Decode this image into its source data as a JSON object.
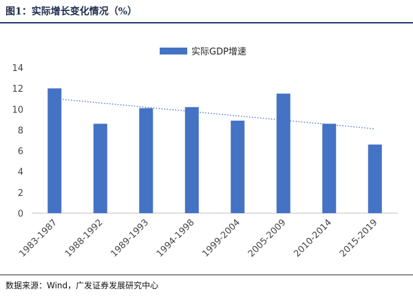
{
  "header": {
    "title": "图1：实际增长变化情况（%）"
  },
  "footer": {
    "source": "数据来源：Wind，广发证券发展研究中心"
  },
  "chart_data": {
    "type": "bar",
    "title": "",
    "xlabel": "",
    "ylabel": "",
    "categories": [
      "1983-1987",
      "1988-1992",
      "1989-1993",
      "1994-1998",
      "1999-2004",
      "2005-2009",
      "2010-2014",
      "2015-2019"
    ],
    "series": [
      {
        "name": "实际GDP增速",
        "values": [
          12.0,
          8.6,
          10.1,
          10.2,
          8.9,
          11.5,
          8.6,
          6.6
        ],
        "color": "#4472c4"
      }
    ],
    "trendline": {
      "type": "linear",
      "style": "dotted",
      "color": "#4472c4"
    },
    "ylim": [
      0,
      14
    ],
    "yticks": [
      0,
      2,
      4,
      6,
      8,
      10,
      12,
      14
    ],
    "grid": false,
    "legend": "top-center"
  }
}
